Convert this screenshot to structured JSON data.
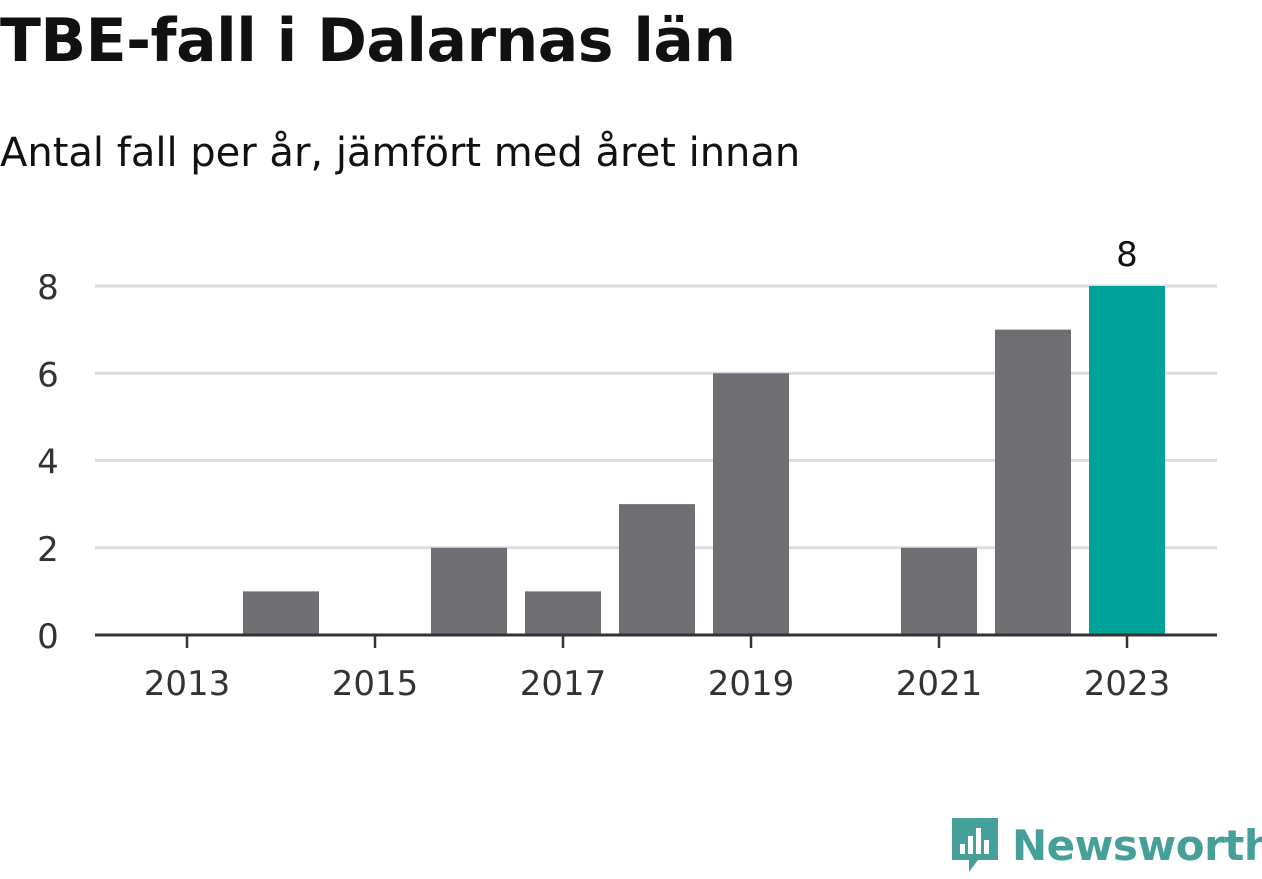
{
  "header": {
    "title": "TBE-fall i Dalarnas län",
    "subtitle": "Antal fall per år, jämfört med året innan"
  },
  "brand": {
    "name": "Newsworthy",
    "logo_icon": "bar-chart-speech-bubble-icon",
    "color": "#46a09a"
  },
  "colors": {
    "bar": "#6f6e73",
    "highlight": "#00a39a",
    "grid": "#dddddd",
    "axis": "#333333"
  },
  "chart_data": {
    "type": "bar",
    "title": "TBE-fall i Dalarnas län",
    "subtitle": "Antal fall per år, jämfört med året innan",
    "categories": [
      2013,
      2014,
      2015,
      2016,
      2017,
      2018,
      2019,
      2020,
      2021,
      2022,
      2023
    ],
    "values": [
      0,
      1,
      0,
      2,
      1,
      3,
      6,
      0,
      2,
      7,
      8
    ],
    "highlight_category": 2023,
    "highlight_label": "8",
    "x_tick_labels": [
      "2013",
      "2015",
      "2017",
      "2019",
      "2021",
      "2023"
    ],
    "y_ticks": [
      0,
      2,
      4,
      6,
      8
    ],
    "ylim": [
      0,
      8
    ],
    "grid": true,
    "legend": false
  }
}
